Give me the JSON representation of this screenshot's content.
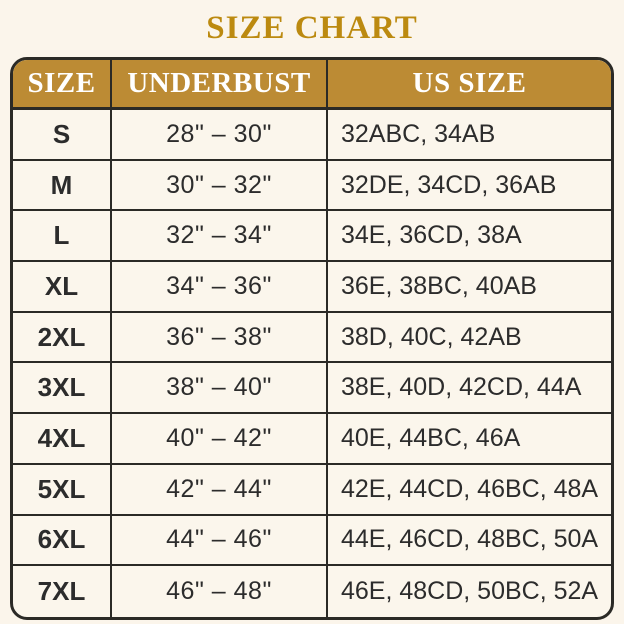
{
  "title": "SIZE CHART",
  "colors": {
    "page_background": "#FBF5EB",
    "title_text": "#BC8A10",
    "header_background": "#BC8B34",
    "header_text": "#FFFFFF",
    "body_text": "#2C2C2C",
    "border": "#2B2A26",
    "row_background": "#FBF6EC"
  },
  "chart_data": {
    "type": "table",
    "title": "SIZE CHART",
    "columns": [
      "SIZE",
      "UNDERBUST",
      "US SIZE"
    ],
    "rows": [
      [
        "S",
        "28\" – 30\"",
        "32ABC, 34AB"
      ],
      [
        "M",
        "30\" – 32\"",
        "32DE, 34CD, 36AB"
      ],
      [
        "L",
        "32\" – 34\"",
        "34E, 36CD, 38A"
      ],
      [
        "XL",
        "34\" – 36\"",
        "36E, 38BC, 40AB"
      ],
      [
        "2XL",
        "36\" – 38\"",
        "38D, 40C, 42AB"
      ],
      [
        "3XL",
        "38\" – 40\"",
        "38E, 40D, 42CD, 44A"
      ],
      [
        "4XL",
        "40\" – 42\"",
        "40E, 44BC, 46A"
      ],
      [
        "5XL",
        "42\" – 44\"",
        "42E, 44CD, 46BC, 48A"
      ],
      [
        "6XL",
        "44\" – 46\"",
        "44E, 46CD, 48BC, 50A"
      ],
      [
        "7XL",
        "46\" – 48\"",
        "46E, 48CD, 50BC, 52A"
      ]
    ]
  }
}
